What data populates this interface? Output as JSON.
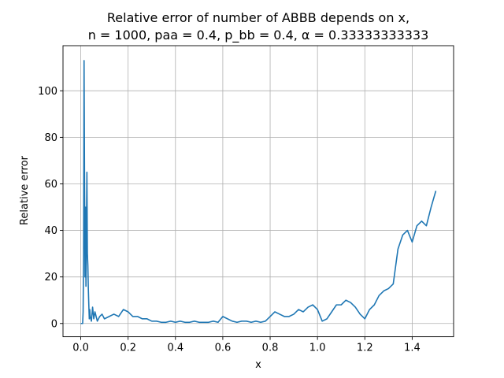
{
  "chart_data": {
    "type": "line",
    "title_line1": "Relative error of number of ABBB depends on x,",
    "title_line2": "n = 1000, paa = 0.4, p_bb = 0.4, α = 0.33333333333",
    "xlabel": "x",
    "ylabel": "Relative error",
    "xlim": [
      -0.075,
      1.575
    ],
    "ylim": [
      -5.7,
      119.4
    ],
    "xticks": [
      0.0,
      0.2,
      0.4,
      0.6,
      0.8,
      1.0,
      1.2,
      1.4
    ],
    "xtick_labels": [
      "0.0",
      "0.2",
      "0.4",
      "0.6",
      "0.8",
      "1.0",
      "1.2",
      "1.4"
    ],
    "yticks": [
      0,
      20,
      40,
      60,
      80,
      100
    ],
    "ytick_labels": [
      "0",
      "20",
      "40",
      "60",
      "80",
      "100"
    ],
    "grid": true,
    "line_color": "#1f77b4",
    "series": [
      {
        "x": [
          0.0,
          0.008,
          0.01,
          0.012,
          0.014,
          0.016,
          0.018,
          0.02,
          0.022,
          0.024,
          0.026,
          0.028,
          0.03,
          0.032,
          0.034,
          0.036,
          0.038,
          0.04,
          0.045,
          0.05,
          0.055,
          0.06,
          0.07,
          0.08,
          0.09,
          0.1,
          0.12,
          0.14,
          0.16,
          0.18,
          0.2,
          0.22,
          0.24,
          0.26,
          0.28,
          0.3,
          0.32,
          0.34,
          0.36,
          0.38,
          0.4,
          0.42,
          0.44,
          0.46,
          0.48,
          0.5,
          0.52,
          0.54,
          0.56,
          0.58,
          0.6,
          0.62,
          0.64,
          0.66,
          0.68,
          0.7,
          0.72,
          0.74,
          0.76,
          0.78,
          0.8,
          0.82,
          0.84,
          0.86,
          0.88,
          0.9,
          0.92,
          0.94,
          0.96,
          0.98,
          1.0,
          1.02,
          1.04,
          1.06,
          1.08,
          1.1,
          1.12,
          1.14,
          1.16,
          1.18,
          1.2,
          1.22,
          1.24,
          1.26,
          1.28,
          1.3,
          1.32,
          1.34,
          1.36,
          1.38,
          1.4,
          1.42,
          1.44,
          1.46,
          1.48,
          1.5
        ],
        "y": [
          0,
          0,
          5,
          30,
          113,
          60,
          20,
          50,
          16,
          40,
          65,
          30,
          25,
          15,
          8,
          2,
          6,
          3,
          1,
          7,
          2,
          5,
          1,
          3,
          4,
          2,
          3,
          4,
          3,
          6,
          5,
          3,
          3,
          2,
          2,
          1,
          1,
          0.5,
          0.5,
          1,
          0.5,
          1,
          0.5,
          0.5,
          1,
          0.5,
          0.5,
          0.5,
          1,
          0.5,
          3,
          2,
          1,
          0.5,
          1,
          1,
          0.5,
          1,
          0.5,
          1,
          3,
          5,
          4,
          3,
          3,
          4,
          6,
          5,
          7,
          8,
          6,
          1,
          2,
          5,
          8,
          8,
          10,
          9,
          7,
          4,
          2,
          6,
          8,
          12,
          14,
          15,
          17,
          32,
          38,
          40,
          35,
          42,
          44,
          42,
          50,
          57
        ]
      }
    ]
  }
}
